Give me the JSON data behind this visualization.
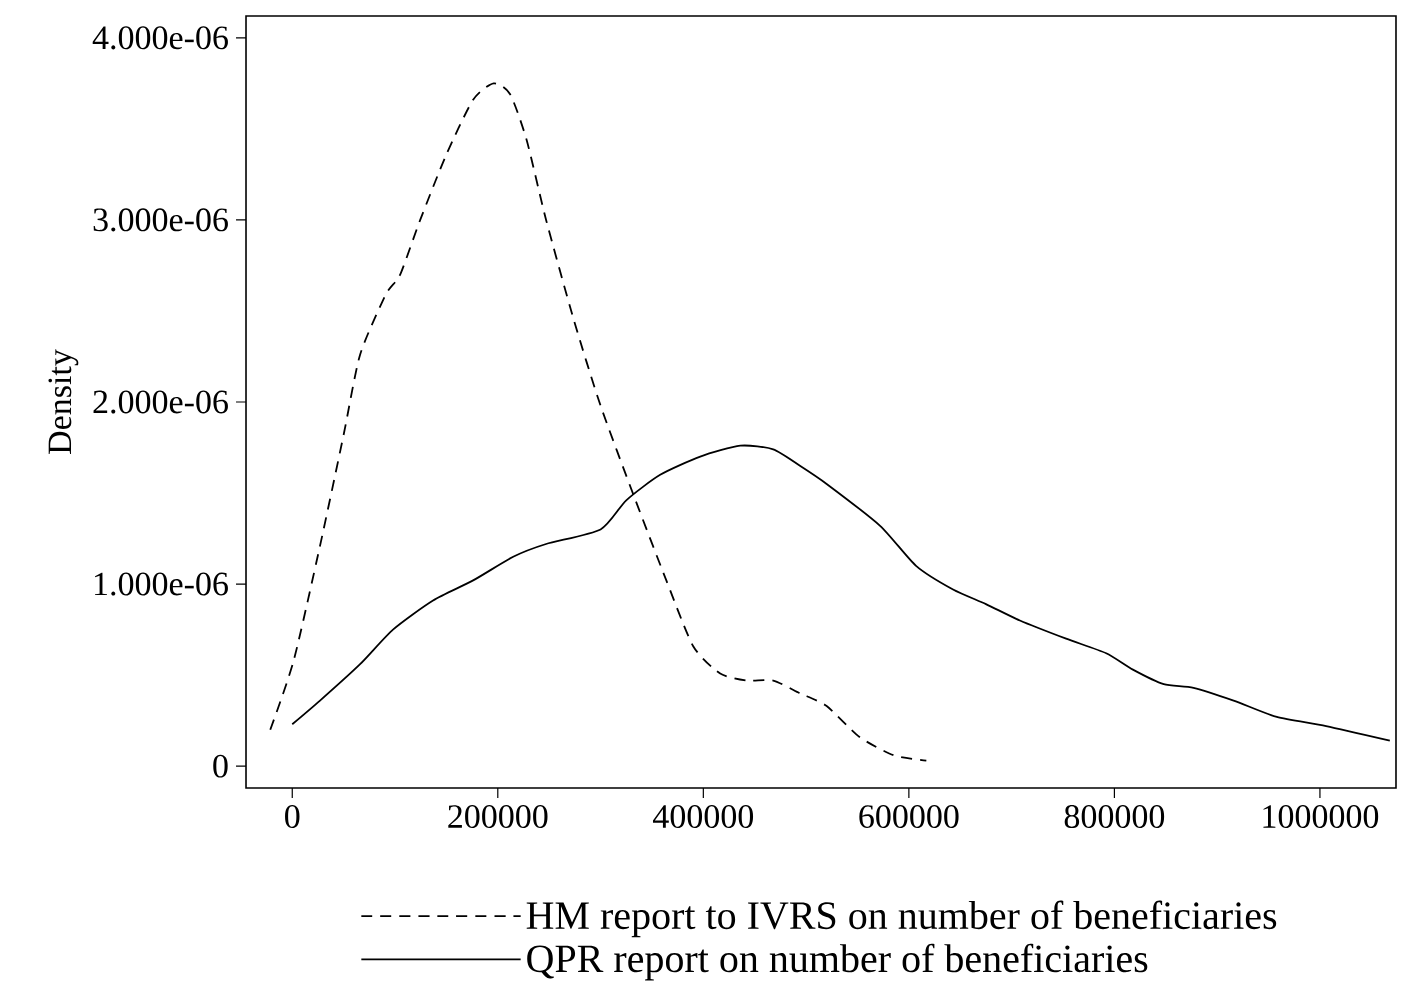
{
  "chart_data": {
    "type": "line",
    "ylabel": "Density",
    "xlim": [
      -45000,
      1074000
    ],
    "ylim": [
      -1.2e-07,
      4.12e-06
    ],
    "xticks": [
      0,
      200000,
      400000,
      600000,
      800000,
      1000000
    ],
    "yticks": [
      0,
      {
        "value": 1e-06,
        "label": "1.000e-06"
      },
      {
        "value": 2e-06,
        "label": "2.000e-06"
      },
      {
        "value": 3e-06,
        "label": "3.000e-06"
      },
      {
        "value": 4e-06,
        "label": "4.000e-06"
      }
    ],
    "grid": false,
    "legend": "bottom",
    "series": [
      {
        "name": "HM report to IVRS on number of beneficiaries",
        "color": "#000000",
        "line_style": "dashed",
        "x": [
          -21400,
          1400,
          27000,
          50000,
          66000,
          91000,
          105000,
          124500,
          150000,
          176000,
          196000,
          212000,
          228000,
          247000,
          274000,
          300000,
          332000,
          364000,
          390000,
          416000,
          442000,
          468000,
          494000,
          520000,
          552000,
          585000,
          617000
        ],
        "values": [
          2e-07,
          5.8e-07,
          1.21e-06,
          1.82e-06,
          2.26e-06,
          2.59e-06,
          2.7e-06,
          3e-06,
          3.36e-06,
          3.66e-06,
          3.75e-06,
          3.69e-06,
          3.44e-06,
          3e-06,
          2.45e-06,
          1.98e-06,
          1.49e-06,
          1.02e-06,
          6.6e-07,
          5.1e-07,
          4.7e-07,
          4.7e-07,
          4e-07,
          3.3e-07,
          1.6e-07,
          6e-08,
          3e-08
        ]
      },
      {
        "name": "QPR report on number of beneficiaries",
        "color": "#000000",
        "line_style": "solid",
        "x": [
          0,
          27000,
          66000,
          98000,
          137000,
          176000,
          215000,
          247000,
          300000,
          325000,
          358000,
          397000,
          436000,
          468000,
          494000,
          520000,
          572000,
          607000,
          643000,
          675000,
          708000,
          753000,
          792000,
          818000,
          848000,
          877000,
          916000,
          958000,
          1006000,
          1068000
        ],
        "values": [
          2.3e-07,
          3.6e-07,
          5.6e-07,
          7.5e-07,
          9.1e-07,
          1.02e-06,
          1.15e-06,
          1.22e-06,
          1.3e-06,
          1.46e-06,
          1.6e-06,
          1.7e-06,
          1.76e-06,
          1.74e-06,
          1.65e-06,
          1.55e-06,
          1.32e-06,
          1.1e-06,
          9.7e-07,
          8.9e-07,
          8e-07,
          7e-07,
          6.2e-07,
          5.3e-07,
          4.5e-07,
          4.3e-07,
          3.6e-07,
          2.7e-07,
          2.2e-07,
          1.4e-07
        ]
      }
    ]
  }
}
